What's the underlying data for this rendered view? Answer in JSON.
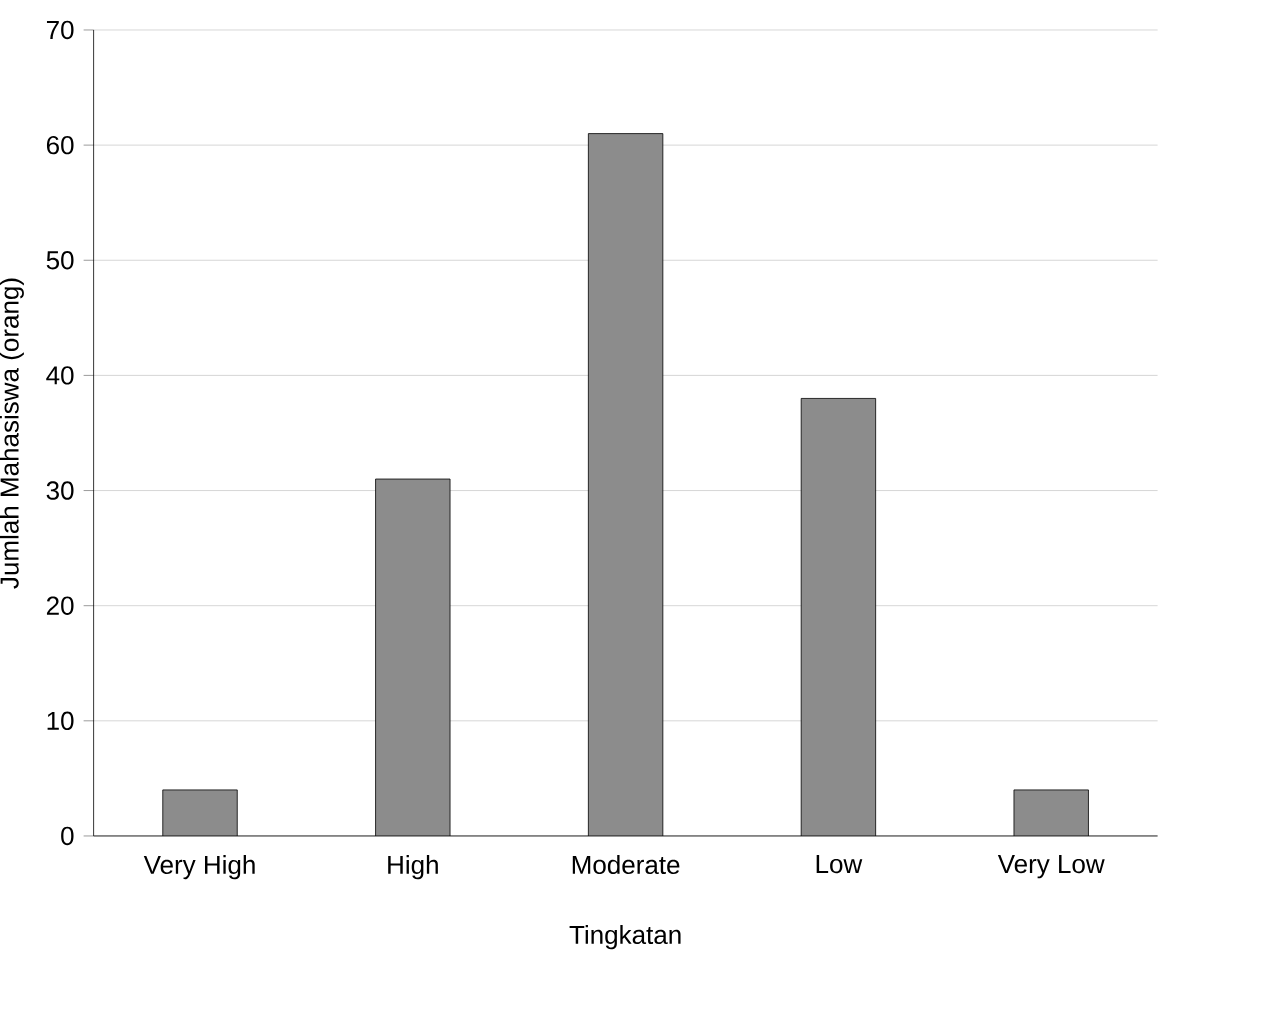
{
  "chart_data": {
    "type": "bar",
    "xlabel": "Tingkatan",
    "ylabel": "Jumlah Mahasiswa (orang)",
    "categories": [
      "Very High",
      "High",
      "Moderate",
      "Low",
      "Very Low"
    ],
    "values": [
      4,
      31,
      61,
      38,
      4
    ],
    "color": "#000000",
    "ylim": [
      0,
      70
    ],
    "yticks": [
      0,
      10,
      20,
      30,
      40,
      50,
      60,
      70
    ],
    "grid": "y"
  }
}
